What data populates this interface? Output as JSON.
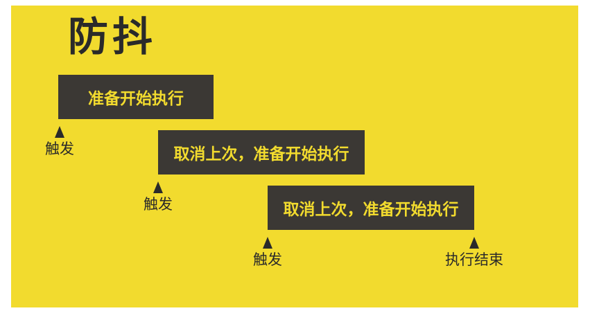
{
  "title": "防抖",
  "bars": [
    {
      "label": "准备开始执行"
    },
    {
      "label": "取消上次，准备开始执行"
    },
    {
      "label": "取消上次，准备开始执行"
    }
  ],
  "markers": [
    {
      "label": "触发"
    },
    {
      "label": "触发"
    },
    {
      "label": "触发"
    },
    {
      "label": "执行结束"
    }
  ],
  "colors": {
    "background": "#f2db2e",
    "bar_fill": "#3b3834",
    "bar_text": "#f2db2e",
    "ink": "#2a2a2a"
  }
}
